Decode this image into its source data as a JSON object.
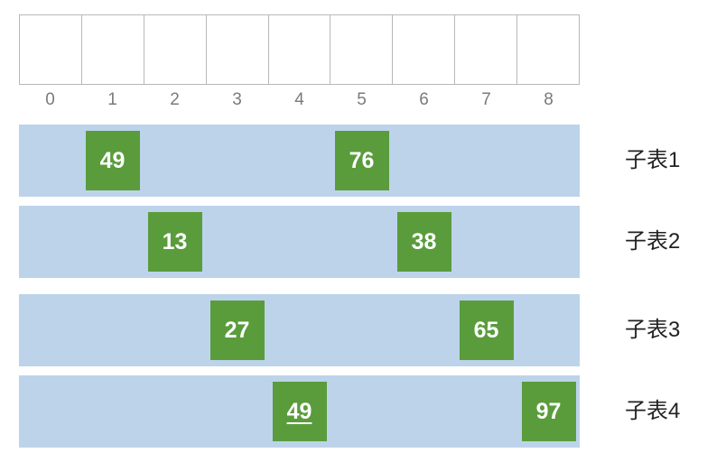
{
  "array": {
    "indices": [
      "0",
      "1",
      "2",
      "3",
      "4",
      "5",
      "6",
      "7",
      "8"
    ]
  },
  "sublists": [
    {
      "label": "子表1",
      "items": [
        {
          "value": "49",
          "index": 1
        },
        {
          "value": "76",
          "index": 5
        }
      ]
    },
    {
      "label": "子表2",
      "items": [
        {
          "value": "13",
          "index": 2
        },
        {
          "value": "38",
          "index": 6
        }
      ]
    },
    {
      "label": "子表3",
      "items": [
        {
          "value": "27",
          "index": 3
        },
        {
          "value": "65",
          "index": 7
        }
      ]
    },
    {
      "label": "子表4",
      "items": [
        {
          "value": "49",
          "index": 4,
          "underlined": true
        },
        {
          "value": "97",
          "index": 8
        }
      ]
    }
  ],
  "colors": {
    "band": "#bcd3ea",
    "chip": "#5a9c3c",
    "chip_text": "#ffffff"
  }
}
